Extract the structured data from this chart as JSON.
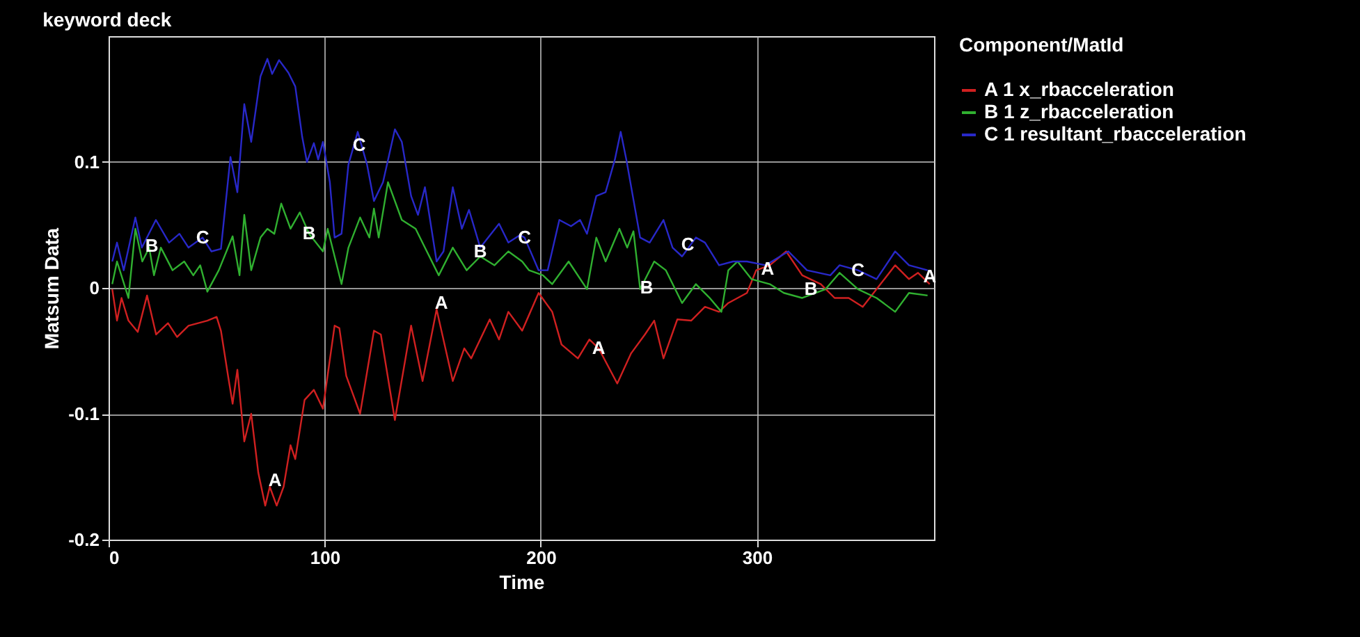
{
  "chart_data": {
    "type": "line",
    "title": "keyword deck",
    "xlabel": "Time",
    "ylabel": "Matsum Data",
    "legend_title": "Component/MatId",
    "legend": "right",
    "grid": true,
    "line_style": "solid",
    "xlim": [
      0,
      382
    ],
    "ylim": [
      -0.2,
      0.2
    ],
    "xticks": [
      0,
      100,
      200,
      300
    ],
    "yticks": [
      -0.2,
      -0.1,
      0,
      0.1
    ],
    "series": [
      {
        "name": "A  1 x_rbacceleration",
        "color": "#d02020",
        "x": [
          1.7,
          3.9,
          6,
          9.2,
          13.5,
          17.8,
          22,
          27.5,
          31.7,
          37,
          45.7,
          50,
          52,
          55.3,
          57.4,
          59.6,
          62.8,
          66,
          69.3,
          72.5,
          74.6,
          77.8,
          81,
          84.2,
          86.4,
          90.7,
          95,
          99.2,
          104.6,
          106.8,
          110,
          116.4,
          122.8,
          126,
          132.5,
          140,
          145.3,
          151.8,
          159.3,
          164.6,
          167.8,
          176.4,
          180.7,
          185,
          191.4,
          199,
          205.3,
          209.6,
          217.2,
          222.5,
          226.8,
          235.4,
          241.8,
          248.2,
          252.5,
          256.8,
          263.2,
          269.6,
          276,
          282.5,
          286.8,
          295.4,
          299.7,
          306,
          313.6,
          321,
          329.6,
          336,
          342.5,
          349,
          355.4,
          364,
          370.4,
          374.6,
          380
        ],
        "values": [
          -0.001,
          -0.026,
          -0.008,
          -0.026,
          -0.035,
          -0.006,
          -0.037,
          -0.028,
          -0.039,
          -0.03,
          -0.026,
          -0.023,
          -0.034,
          -0.07,
          -0.092,
          -0.065,
          -0.122,
          -0.1,
          -0.147,
          -0.173,
          -0.158,
          -0.173,
          -0.158,
          -0.125,
          -0.136,
          -0.089,
          -0.081,
          -0.096,
          -0.03,
          -0.032,
          -0.07,
          -0.1,
          -0.034,
          -0.037,
          -0.105,
          -0.03,
          -0.074,
          -0.017,
          -0.074,
          -0.048,
          -0.056,
          -0.025,
          -0.041,
          -0.019,
          -0.034,
          -0.004,
          -0.019,
          -0.045,
          -0.056,
          -0.041,
          -0.048,
          -0.076,
          -0.052,
          -0.037,
          -0.026,
          -0.056,
          -0.025,
          -0.026,
          -0.015,
          -0.019,
          -0.012,
          -0.004,
          0.014,
          0.018,
          0.029,
          0.01,
          0.003,
          -0.008,
          -0.008,
          -0.015,
          -0.001,
          0.018,
          0.007,
          0.012,
          0.003
        ]
      },
      {
        "name": "B  1 z_rbacceleration",
        "color": "#30b030",
        "x": [
          1.7,
          3.9,
          9.2,
          12.4,
          15.6,
          18.8,
          21,
          24.2,
          29.6,
          35,
          39.2,
          42.4,
          45.7,
          51,
          57.4,
          60.6,
          62.8,
          66,
          70.3,
          73.5,
          76.7,
          79.9,
          84.2,
          88.5,
          92.8,
          99.2,
          101.4,
          107.8,
          111,
          116.4,
          120.7,
          122.8,
          125,
          129.3,
          135.7,
          142.1,
          146.4,
          152.8,
          159.3,
          165.7,
          172,
          178.6,
          185,
          191.4,
          194.6,
          201,
          205.3,
          212.9,
          221.4,
          225.7,
          230,
          236.4,
          240,
          242.9,
          246,
          252.5,
          257.9,
          265.4,
          271.8,
          278.2,
          283.6,
          286.8,
          291.1,
          297.5,
          306,
          312.5,
          321,
          331.8,
          338.3,
          346.8,
          355.4,
          364,
          370.4,
          379
        ],
        "values": [
          0.003,
          0.021,
          -0.008,
          0.047,
          0.021,
          0.032,
          0.01,
          0.032,
          0.014,
          0.021,
          0.01,
          0.018,
          -0.003,
          0.014,
          0.041,
          0.01,
          0.058,
          0.014,
          0.04,
          0.047,
          0.043,
          0.067,
          0.047,
          0.06,
          0.043,
          0.029,
          0.047,
          0.003,
          0.032,
          0.056,
          0.04,
          0.063,
          0.04,
          0.084,
          0.054,
          0.047,
          0.032,
          0.01,
          0.032,
          0.014,
          0.025,
          0.018,
          0.029,
          0.021,
          0.014,
          0.01,
          0.003,
          0.021,
          -0.001,
          0.04,
          0.021,
          0.047,
          0.032,
          0.045,
          -0.001,
          0.021,
          0.014,
          -0.012,
          0.003,
          -0.008,
          -0.019,
          0.014,
          0.021,
          0.007,
          0.003,
          -0.004,
          -0.008,
          -0.001,
          0.012,
          -0.001,
          -0.008,
          -0.019,
          -0.004,
          -0.006
        ]
      },
      {
        "name": "C  1 resultant_rbacceleration",
        "color": "#2828c8",
        "x": [
          1.7,
          3.9,
          7,
          12.4,
          15.4,
          21.9,
          28,
          32.8,
          37,
          43.5,
          47.6,
          52,
          56.4,
          59.6,
          62.8,
          66,
          70.3,
          73.5,
          75.7,
          78.9,
          83.2,
          86.4,
          89.6,
          91.8,
          95,
          97,
          99.2,
          102.4,
          104.6,
          107.8,
          111,
          115.3,
          119.6,
          122.8,
          127,
          132.5,
          135.7,
          140,
          143.2,
          146.4,
          151.8,
          155,
          159.3,
          163.5,
          166.8,
          172,
          180.7,
          185,
          190.4,
          192.5,
          199,
          203.2,
          208.6,
          214,
          218.2,
          221.4,
          225.7,
          230,
          234.3,
          237,
          239.6,
          246,
          250.4,
          256.8,
          261,
          265.4,
          271.8,
          276,
          282.5,
          289,
          295.4,
          304,
          314.6,
          323.2,
          334,
          338.3,
          346.8,
          355.4,
          364,
          370.4,
          379
        ],
        "values": [
          0.021,
          0.036,
          0.014,
          0.056,
          0.032,
          0.054,
          0.036,
          0.043,
          0.032,
          0.04,
          0.029,
          0.031,
          0.104,
          0.076,
          0.146,
          0.116,
          0.168,
          0.182,
          0.17,
          0.181,
          0.171,
          0.16,
          0.12,
          0.1,
          0.115,
          0.102,
          0.116,
          0.084,
          0.04,
          0.043,
          0.098,
          0.124,
          0.098,
          0.069,
          0.084,
          0.126,
          0.116,
          0.073,
          0.058,
          0.08,
          0.021,
          0.029,
          0.08,
          0.047,
          0.062,
          0.032,
          0.051,
          0.036,
          0.042,
          0.04,
          0.014,
          0.014,
          0.054,
          0.049,
          0.054,
          0.043,
          0.073,
          0.076,
          0.102,
          0.124,
          0.102,
          0.04,
          0.036,
          0.054,
          0.032,
          0.025,
          0.04,
          0.036,
          0.018,
          0.021,
          0.021,
          0.018,
          0.029,
          0.014,
          0.01,
          0.018,
          0.014,
          0.007,
          0.029,
          0.018,
          0.014
        ]
      }
    ],
    "annotations": [
      {
        "text": "A",
        "x": 77,
        "y": -0.153
      },
      {
        "text": "A",
        "x": 154,
        "y": -0.012
      },
      {
        "text": "A",
        "x": 226.8,
        "y": -0.048
      },
      {
        "text": "A",
        "x": 305,
        "y": 0.015
      },
      {
        "text": "A",
        "x": 380,
        "y": 0.009
      },
      {
        "text": "B",
        "x": 20,
        "y": 0.033
      },
      {
        "text": "B",
        "x": 92.8,
        "y": 0.043
      },
      {
        "text": "B",
        "x": 172,
        "y": 0.029
      },
      {
        "text": "B",
        "x": 249,
        "y": 0
      },
      {
        "text": "B",
        "x": 325,
        "y": -0.001
      },
      {
        "text": "C",
        "x": 43.5,
        "y": 0.04
      },
      {
        "text": "C",
        "x": 116,
        "y": 0.113
      },
      {
        "text": "C",
        "x": 192.5,
        "y": 0.04
      },
      {
        "text": "C",
        "x": 268,
        "y": 0.034
      },
      {
        "text": "C",
        "x": 346.8,
        "y": 0.014
      }
    ]
  }
}
